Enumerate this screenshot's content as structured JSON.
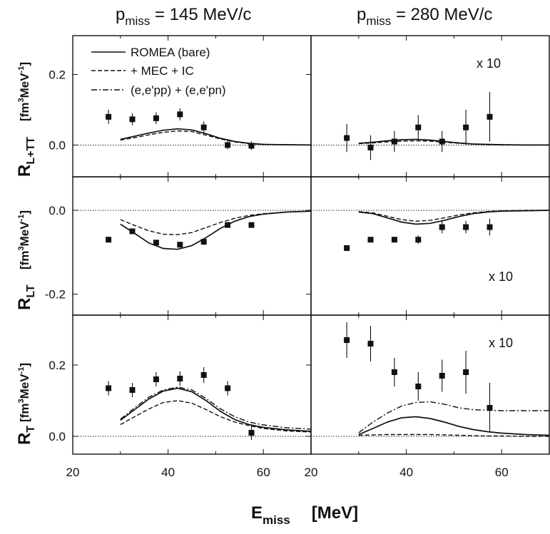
{
  "figure": {
    "left_title": {
      "prefix": "p",
      "sub": "miss",
      "suffix": " = 145 MeV/c"
    },
    "right_title": {
      "prefix": "p",
      "sub": "miss",
      "suffix": " = 280 MeV/c"
    },
    "xlabel": {
      "main": "E",
      "sub": "miss",
      "unit": "[MeV]"
    },
    "ylabels": [
      {
        "main": "R",
        "sub": "L+TT",
        "unit_open": "[fm",
        "unit_sup": "3",
        "unit_mid": "MeV",
        "unit_sup2": "-1",
        "unit_close": "]"
      },
      {
        "main": "R",
        "sub": "LT",
        "unit_open": "[fm",
        "unit_sup": "3",
        "unit_mid": "MeV",
        "unit_sup2": "-1",
        "unit_close": "]"
      },
      {
        "main": "R",
        "sub": "T",
        "unit_open": "[fm",
        "unit_sup": "3",
        "unit_mid": "MeV",
        "unit_sup2": "-1",
        "unit_close": "]"
      }
    ],
    "legend": [
      "ROMEA (bare)",
      "+ MEC + IC",
      "(e,e'pp) + (e,e'pn)"
    ],
    "line_color": "#111111"
  },
  "chart_data": [
    {
      "type": "scatter",
      "panel": "R_L+TT, p_miss = 145 MeV/c",
      "xlim": [
        20,
        70
      ],
      "ylim": [
        -0.09,
        0.31
      ],
      "yticks": [
        0.0,
        0.2
      ],
      "ytick_labels": [
        "0.0",
        "0.2"
      ],
      "data": {
        "x": [
          27.5,
          32.5,
          37.5,
          42.5,
          47.5,
          52.5,
          57.5
        ],
        "y": [
          0.08,
          0.073,
          0.076,
          0.087,
          0.05,
          0.0,
          -0.002
        ],
        "err": [
          0.02,
          0.017,
          0.017,
          0.017,
          0.017,
          0.012,
          0.012
        ]
      },
      "series": [
        {
          "name": "ROMEA (bare)",
          "style": "solid",
          "x": [
            30,
            33,
            36,
            39,
            42,
            45,
            48,
            51,
            54,
            57,
            60,
            65,
            70
          ],
          "y": [
            0.016,
            0.025,
            0.034,
            0.042,
            0.046,
            0.043,
            0.032,
            0.019,
            0.01,
            0.005,
            0.002,
            0.001,
            0.0
          ]
        },
        {
          "name": "+ MEC + IC",
          "style": "dashed",
          "x": [
            30,
            33,
            36,
            39,
            42,
            45,
            48,
            51,
            54,
            57,
            60,
            65,
            70
          ],
          "y": [
            0.014,
            0.021,
            0.029,
            0.036,
            0.04,
            0.038,
            0.028,
            0.017,
            0.009,
            0.004,
            0.002,
            0.001,
            0.0
          ]
        }
      ]
    },
    {
      "type": "scatter",
      "panel": "R_L+TT, p_miss = 280 MeV/c",
      "scale_note": "x 10",
      "xlim": [
        20,
        70
      ],
      "ylim": [
        -0.09,
        0.31
      ],
      "data": {
        "x": [
          27.5,
          32.5,
          37.5,
          42.5,
          47.5,
          52.5,
          57.5
        ],
        "y": [
          0.02,
          -0.007,
          0.01,
          0.05,
          0.01,
          0.05,
          0.08
        ],
        "err": [
          0.04,
          0.035,
          0.03,
          0.035,
          0.03,
          0.05,
          0.07
        ]
      },
      "series": [
        {
          "name": "ROMEA (bare)",
          "style": "solid",
          "x": [
            30,
            33,
            36,
            39,
            42,
            45,
            48,
            51,
            54,
            57,
            60,
            65,
            70
          ],
          "y": [
            0.005,
            0.008,
            0.012,
            0.015,
            0.016,
            0.014,
            0.01,
            0.006,
            0.003,
            0.002,
            0.001,
            0.0,
            0.0
          ]
        },
        {
          "name": "+ MEC + IC",
          "style": "dashed",
          "x": [
            30,
            33,
            36,
            39,
            42,
            45,
            48,
            51,
            54,
            57,
            60,
            65,
            70
          ],
          "y": [
            0.004,
            0.006,
            0.009,
            0.011,
            0.012,
            0.011,
            0.008,
            0.005,
            0.003,
            0.001,
            0.0,
            0.0,
            0.0
          ]
        }
      ]
    },
    {
      "type": "scatter",
      "panel": "R_LT, p_miss = 145 MeV/c",
      "xlim": [
        20,
        70
      ],
      "ylim": [
        -0.25,
        0.08
      ],
      "yticks": [
        0.0,
        -0.2
      ],
      "ytick_labels": [
        "0.0",
        "-0.2"
      ],
      "data": {
        "x": [
          27.5,
          32.5,
          37.5,
          42.5,
          47.5,
          52.5,
          57.5
        ],
        "y": [
          -0.07,
          -0.05,
          -0.077,
          -0.082,
          -0.075,
          -0.035,
          -0.035
        ],
        "err": [
          0.006,
          0.006,
          0.006,
          0.007,
          0.007,
          0.006,
          0.006
        ]
      },
      "series": [
        {
          "name": "ROMEA (bare)",
          "style": "solid",
          "x": [
            30,
            33,
            36,
            39,
            42,
            45,
            48,
            51,
            54,
            57,
            60,
            65,
            70
          ],
          "y": [
            -0.033,
            -0.055,
            -0.078,
            -0.091,
            -0.093,
            -0.084,
            -0.065,
            -0.043,
            -0.026,
            -0.015,
            -0.009,
            -0.004,
            -0.002
          ]
        },
        {
          "name": "+ MEC + IC",
          "style": "dashed",
          "x": [
            30,
            33,
            36,
            39,
            42,
            45,
            48,
            51,
            54,
            57,
            60,
            65,
            70
          ],
          "y": [
            -0.022,
            -0.036,
            -0.049,
            -0.057,
            -0.058,
            -0.053,
            -0.041,
            -0.029,
            -0.019,
            -0.012,
            -0.008,
            -0.004,
            -0.002
          ]
        }
      ]
    },
    {
      "type": "scatter",
      "panel": "R_LT, p_miss = 280 MeV/c",
      "scale_note": "x 10",
      "xlim": [
        20,
        70
      ],
      "ylim": [
        -0.25,
        0.08
      ],
      "data": {
        "x": [
          27.5,
          32.5,
          37.5,
          42.5,
          47.5,
          52.5,
          57.5
        ],
        "y": [
          -0.09,
          -0.07,
          -0.07,
          -0.07,
          -0.04,
          -0.04,
          -0.04
        ],
        "err": [
          0.006,
          0.006,
          0.006,
          0.01,
          0.015,
          0.015,
          0.02
        ]
      },
      "series": [
        {
          "name": "ROMEA (bare)",
          "style": "solid",
          "x": [
            30,
            33,
            36,
            39,
            42,
            45,
            48,
            51,
            54,
            57,
            60,
            65,
            70
          ],
          "y": [
            -0.004,
            -0.008,
            -0.018,
            -0.028,
            -0.033,
            -0.031,
            -0.024,
            -0.015,
            -0.008,
            -0.004,
            -0.002,
            -0.001,
            0.0
          ]
        },
        {
          "name": "+ MEC + IC",
          "style": "dashed",
          "x": [
            30,
            33,
            36,
            39,
            42,
            45,
            48,
            51,
            54,
            57,
            60,
            65,
            70
          ],
          "y": [
            -0.003,
            -0.006,
            -0.014,
            -0.022,
            -0.026,
            -0.024,
            -0.018,
            -0.011,
            -0.006,
            -0.003,
            -0.001,
            0.0,
            0.0
          ]
        }
      ]
    },
    {
      "type": "scatter",
      "panel": "R_T, p_miss = 145 MeV/c",
      "xlim": [
        20,
        70
      ],
      "ylim": [
        -0.05,
        0.34
      ],
      "yticks": [
        0.0,
        0.2
      ],
      "ytick_labels": [
        "0.0",
        "0.2"
      ],
      "data": {
        "x": [
          27.5,
          32.5,
          37.5,
          42.5,
          47.5,
          52.5,
          57.5
        ],
        "y": [
          0.135,
          0.13,
          0.16,
          0.162,
          0.172,
          0.135,
          0.01
        ],
        "err": [
          0.02,
          0.02,
          0.02,
          0.02,
          0.022,
          0.02,
          0.02
        ]
      },
      "series": [
        {
          "name": "ROMEA (bare)",
          "style": "solid",
          "x": [
            30,
            33,
            36,
            39,
            42,
            45,
            48,
            51,
            54,
            57,
            60,
            65,
            70
          ],
          "y": [
            0.045,
            0.075,
            0.105,
            0.127,
            0.135,
            0.125,
            0.1,
            0.07,
            0.047,
            0.033,
            0.025,
            0.018,
            0.014
          ]
        },
        {
          "name": "+ MEC + IC",
          "style": "dashed",
          "x": [
            30,
            33,
            36,
            39,
            42,
            45,
            48,
            51,
            54,
            57,
            60,
            65,
            70
          ],
          "y": [
            0.033,
            0.055,
            0.077,
            0.095,
            0.1,
            0.093,
            0.075,
            0.055,
            0.04,
            0.03,
            0.022,
            0.015,
            0.012
          ]
        },
        {
          "name": "(e,e'pp) + (e,e'pn)",
          "style": "dashdot",
          "x": [
            30,
            33,
            36,
            39,
            42,
            45,
            48,
            51,
            54,
            57,
            60,
            65,
            70
          ],
          "y": [
            0.048,
            0.08,
            0.11,
            0.13,
            0.138,
            0.13,
            0.106,
            0.077,
            0.055,
            0.04,
            0.032,
            0.024,
            0.02
          ]
        }
      ]
    },
    {
      "type": "scatter",
      "panel": "R_T, p_miss = 280 MeV/c",
      "scale_note": "x 10",
      "xlim": [
        20,
        70
      ],
      "ylim": [
        -0.05,
        0.34
      ],
      "data": {
        "x": [
          27.5,
          32.5,
          37.5,
          42.5,
          47.5,
          52.5,
          57.5
        ],
        "y": [
          0.27,
          0.26,
          0.18,
          0.14,
          0.17,
          0.18,
          0.08
        ],
        "err": [
          0.05,
          0.05,
          0.04,
          0.04,
          0.045,
          0.06,
          0.07
        ]
      },
      "series": [
        {
          "name": "ROMEA (bare)",
          "style": "solid",
          "x": [
            30,
            33,
            36,
            39,
            42,
            45,
            48,
            51,
            54,
            57,
            60,
            65,
            70
          ],
          "y": [
            0.005,
            0.022,
            0.04,
            0.052,
            0.055,
            0.05,
            0.04,
            0.028,
            0.019,
            0.013,
            0.009,
            0.005,
            0.003
          ]
        },
        {
          "name": "+ MEC + IC",
          "style": "dashed",
          "x": [
            30,
            33,
            36,
            39,
            42,
            45,
            48,
            51,
            54,
            57,
            60,
            65,
            70
          ],
          "y": [
            0.003,
            0.004,
            0.005,
            0.005,
            0.005,
            0.005,
            0.004,
            0.003,
            0.002,
            0.001,
            0.001,
            0.0,
            0.0
          ]
        },
        {
          "name": "(e,e'pp) + (e,e'pn)",
          "style": "dashdot",
          "x": [
            30,
            33,
            36,
            39,
            42,
            45,
            48,
            51,
            54,
            57,
            60,
            65,
            70
          ],
          "y": [
            0.01,
            0.04,
            0.065,
            0.085,
            0.095,
            0.097,
            0.09,
            0.08,
            0.075,
            0.073,
            0.072,
            0.072,
            0.072
          ]
        }
      ]
    }
  ]
}
